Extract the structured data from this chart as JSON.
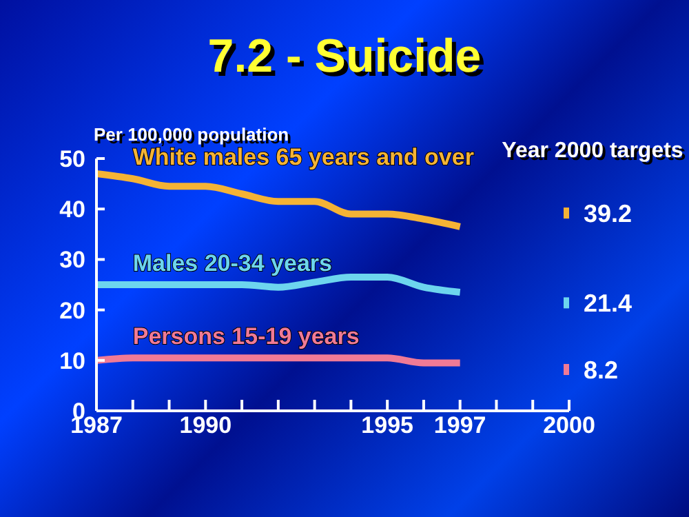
{
  "chart_data": {
    "type": "line",
    "title": "7.2 - Suicide",
    "ylabel": "Per 100,000 population",
    "annotations": [
      "Year 2000 targets"
    ],
    "xlim": [
      1987,
      2000
    ],
    "xticks": [
      1987,
      {
        "value": 1988,
        "label": null
      },
      {
        "value": 1989,
        "label": null
      },
      1990,
      {
        "value": 1991,
        "label": null
      },
      {
        "value": 1992,
        "label": null
      },
      {
        "value": 1993,
        "label": null
      },
      {
        "value": 1994,
        "label": null
      },
      1995,
      {
        "value": 1996,
        "label": null
      },
      1997,
      {
        "value": 1998,
        "label": null
      },
      {
        "value": 1999,
        "label": null
      },
      2000
    ],
    "ylim": [
      0,
      50
    ],
    "yticks": [
      0,
      10,
      20,
      30,
      40,
      50
    ],
    "grid": false,
    "legend": false,
    "marker": "none",
    "line_style": "solid",
    "series": [
      {
        "name": "White males 65 years and over",
        "color": "#f5b335",
        "x": [
          1987,
          1988,
          1989,
          1990,
          1991,
          1992,
          1993,
          1994,
          1995,
          1996,
          1997
        ],
        "values": [
          47,
          46,
          44.5,
          44.5,
          43,
          41.5,
          41.5,
          39,
          39,
          38,
          36.5
        ]
      },
      {
        "name": "Males 20-34 years",
        "color": "#6dd5ee",
        "x": [
          1987,
          1988,
          1989,
          1990,
          1991,
          1992,
          1993,
          1994,
          1995,
          1996,
          1997
        ],
        "values": [
          25,
          25,
          25,
          25,
          25,
          24.5,
          25.5,
          26.5,
          26.5,
          24.5,
          23.5
        ]
      },
      {
        "name": "Persons 15-19 years",
        "color": "#f07a96",
        "x": [
          1987,
          1988,
          1989,
          1990,
          1991,
          1992,
          1993,
          1994,
          1995,
          1996,
          1997
        ],
        "values": [
          10,
          10.5,
          10.5,
          10.5,
          10.5,
          10.5,
          10.5,
          10.5,
          10.5,
          9.5,
          9.5
        ]
      },
      {
        "type": "scatter",
        "marker": "square",
        "color": "#f5b335",
        "x": [
          2000
        ],
        "values": [
          39.2
        ],
        "value_labels": [
          "39.2"
        ]
      },
      {
        "type": "scatter",
        "marker": "square",
        "color": "#6dd5ee",
        "x": [
          2000
        ],
        "values": [
          21.4
        ],
        "value_labels": [
          "21.4"
        ]
      },
      {
        "type": "scatter",
        "marker": "square",
        "color": "#f07a96",
        "x": [
          2000
        ],
        "values": [
          8.2
        ],
        "value_labels": [
          "8.2"
        ]
      }
    ]
  }
}
